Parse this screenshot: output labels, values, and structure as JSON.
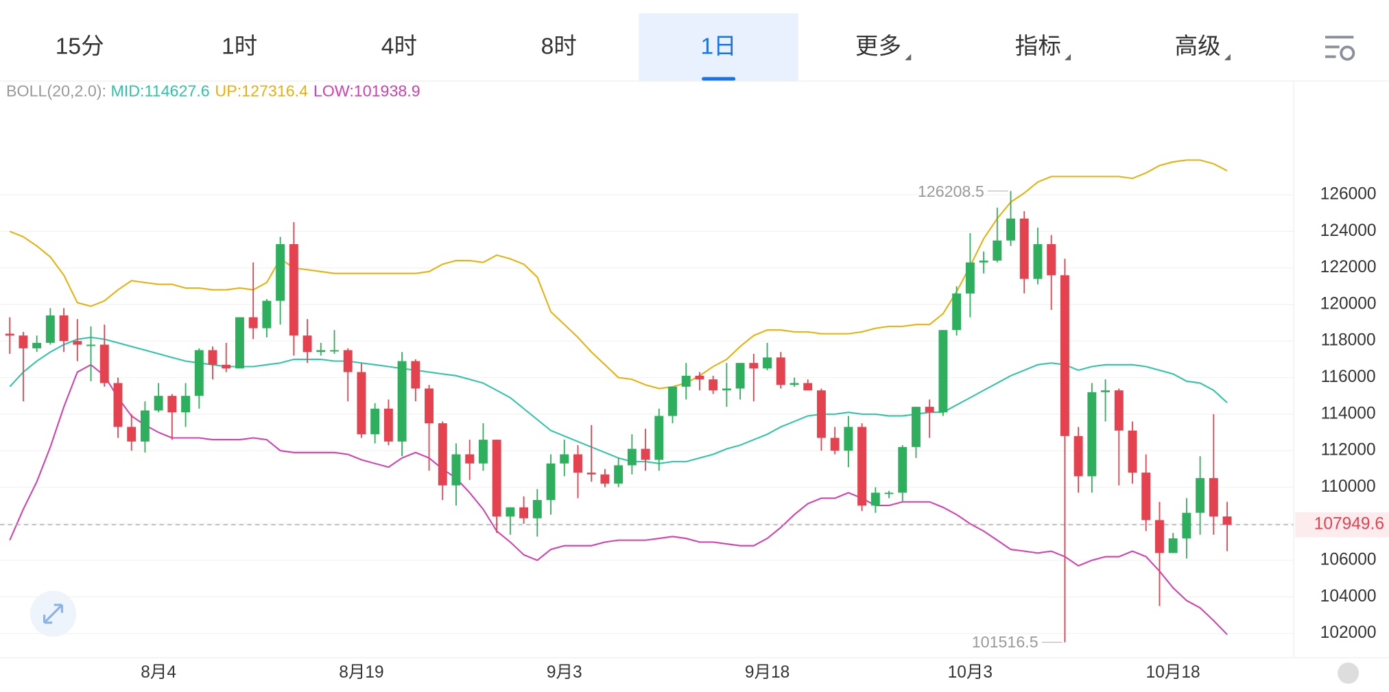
{
  "tabs": [
    {
      "label": "15分"
    },
    {
      "label": "1时"
    },
    {
      "label": "4时"
    },
    {
      "label": "8时"
    },
    {
      "label": "1日"
    },
    {
      "label": "更多",
      "menu": true
    },
    {
      "label": "指标",
      "menu": true
    },
    {
      "label": "高级",
      "menu": true
    }
  ],
  "selected_tab": 4,
  "chart_data": {
    "type": "candlestick",
    "indicator_label": "BOLL(20,2.0):",
    "up_color": "#2eaf5d",
    "down_color": "#e5424f",
    "categories": [
      null,
      null,
      null,
      null,
      null,
      null,
      null,
      null,
      null,
      null,
      null,
      "8月4",
      null,
      null,
      null,
      null,
      null,
      null,
      null,
      null,
      null,
      null,
      null,
      null,
      null,
      null,
      "8月19",
      null,
      null,
      null,
      null,
      null,
      null,
      null,
      null,
      null,
      null,
      null,
      null,
      null,
      null,
      "9月3",
      null,
      null,
      null,
      null,
      null,
      null,
      null,
      null,
      null,
      null,
      null,
      null,
      null,
      null,
      "9月18",
      null,
      null,
      null,
      null,
      null,
      null,
      null,
      null,
      null,
      null,
      null,
      null,
      null,
      null,
      "10月3",
      null,
      null,
      null,
      null,
      null,
      null,
      null,
      null,
      null,
      null,
      null,
      null,
      null,
      null,
      "10月18",
      null,
      null,
      null,
      null
    ],
    "open": [
      118400,
      118300,
      117600,
      117900,
      119400,
      118000,
      117800,
      117800,
      115700,
      113300,
      112500,
      114200,
      115000,
      114100,
      115000,
      117500,
      116700,
      116500,
      119300,
      118700,
      120200,
      123300,
      118300,
      117400,
      117500,
      117500,
      116300,
      112900,
      114300,
      112500,
      116900,
      115400,
      113500,
      110100,
      111800,
      111300,
      112600,
      108400,
      108900,
      108300,
      109300,
      111300,
      111800,
      110800,
      110700,
      110200,
      111200,
      112100,
      111500,
      113900,
      115500,
      116100,
      115900,
      115300,
      115400,
      116800,
      116500,
      117100,
      115600,
      115700,
      115300,
      112700,
      112000,
      113300,
      109000,
      109700,
      109700,
      112200,
      114400,
      114100,
      118600,
      120600,
      122300,
      122400,
      123500,
      124700,
      121400,
      123300,
      121600,
      112800,
      110600,
      115200,
      115300,
      113100,
      110800,
      108200,
      106400,
      107200,
      108600,
      110500,
      108400
    ],
    "high": [
      119300,
      118500,
      118300,
      119800,
      119800,
      119200,
      118800,
      118900,
      116000,
      114000,
      114700,
      115700,
      115100,
      115700,
      117600,
      117700,
      117900,
      119300,
      122300,
      120300,
      123700,
      124500,
      119200,
      117900,
      118600,
      117600,
      116800,
      114600,
      114800,
      117400,
      117000,
      115600,
      113600,
      112400,
      112600,
      113500,
      112600,
      108900,
      109500,
      109900,
      111800,
      112600,
      112300,
      113400,
      111000,
      111600,
      112900,
      113200,
      114300,
      115500,
      116800,
      116300,
      116100,
      116800,
      116800,
      117300,
      117900,
      117400,
      116000,
      115900,
      115400,
      113300,
      113900,
      113500,
      110000,
      109800,
      112300,
      114400,
      114800,
      118600,
      121000,
      123900,
      122900,
      125300,
      126208.5,
      125100,
      124200,
      123800,
      122500,
      113300,
      115700,
      115900,
      115400,
      113600,
      111800,
      109200,
      107500,
      109400,
      111700,
      114000,
      109200
    ],
    "low": [
      117300,
      114700,
      117400,
      117800,
      117400,
      116900,
      115800,
      115500,
      112700,
      112000,
      111900,
      114100,
      112600,
      113300,
      114300,
      115900,
      116300,
      116500,
      118100,
      118200,
      118900,
      117200,
      116800,
      117200,
      117300,
      114700,
      112700,
      112400,
      112300,
      111700,
      114700,
      110900,
      109300,
      109000,
      110400,
      110900,
      107500,
      107400,
      108000,
      107300,
      108500,
      110600,
      109400,
      110300,
      110000,
      110000,
      110700,
      110900,
      110900,
      113500,
      114800,
      115300,
      115100,
      114400,
      114800,
      114700,
      116400,
      115400,
      115500,
      115300,
      112000,
      111800,
      111100,
      108700,
      108600,
      109400,
      109200,
      111600,
      112700,
      113900,
      118300,
      119300,
      121700,
      122300,
      123200,
      120600,
      121100,
      119700,
      101516.5,
      109700,
      109700,
      113600,
      110100,
      110200,
      107600,
      103500,
      106400,
      106100,
      107400,
      107400,
      106500
    ],
    "close": [
      118300,
      117600,
      117900,
      119400,
      118000,
      117800,
      117800,
      115700,
      113300,
      112500,
      114200,
      115000,
      114100,
      115000,
      117500,
      116700,
      116500,
      119300,
      118700,
      120200,
      123300,
      118300,
      117400,
      117500,
      117500,
      116300,
      112900,
      114300,
      112500,
      116900,
      115400,
      113500,
      110100,
      111800,
      111300,
      112600,
      108400,
      108900,
      108300,
      109300,
      111300,
      111800,
      110800,
      110700,
      110200,
      111200,
      112100,
      111500,
      113900,
      115500,
      116100,
      115900,
      115300,
      115400,
      116800,
      116500,
      117100,
      115600,
      115700,
      115300,
      112700,
      112000,
      113300,
      109000,
      109700,
      109700,
      112200,
      114400,
      114100,
      118600,
      120600,
      122300,
      122400,
      123500,
      124700,
      121400,
      123300,
      121600,
      112800,
      110600,
      115200,
      115300,
      113100,
      110800,
      108200,
      106400,
      107200,
      108600,
      110500,
      108400,
      107949.6
    ],
    "series": [
      {
        "label": "MID:114627.6",
        "color": "#2ec4a6",
        "values": [
          115500,
          116300,
          116900,
          117400,
          117800,
          118100,
          118200,
          118100,
          117900,
          117700,
          117500,
          117300,
          117100,
          116900,
          116800,
          116700,
          116600,
          116600,
          116600,
          116700,
          116800,
          117000,
          117000,
          117000,
          116900,
          116900,
          116800,
          116700,
          116600,
          116500,
          116400,
          116300,
          116200,
          116100,
          115900,
          115700,
          115300,
          114900,
          114300,
          113700,
          113100,
          112800,
          112500,
          112200,
          111900,
          111600,
          111400,
          111400,
          111300,
          111400,
          111400,
          111600,
          111800,
          112100,
          112300,
          112600,
          112900,
          113300,
          113600,
          113900,
          114000,
          114000,
          114100,
          114000,
          114000,
          113900,
          113900,
          114000,
          114100,
          114100,
          114500,
          114900,
          115300,
          115700,
          116100,
          116400,
          116700,
          116800,
          116700,
          116400,
          116600,
          116700,
          116700,
          116700,
          116600,
          116400,
          116200,
          115800,
          115700,
          115300,
          114627.6
        ]
      },
      {
        "label": "UP:127316.4",
        "color": "#e9b00c",
        "values": [
          124000,
          123700,
          123200,
          122600,
          121600,
          120100,
          119900,
          120200,
          120800,
          121300,
          121200,
          121100,
          121100,
          120900,
          120900,
          120800,
          120800,
          120900,
          120800,
          121200,
          122500,
          122000,
          121900,
          121800,
          121700,
          121700,
          121700,
          121700,
          121700,
          121700,
          121700,
          121800,
          122200,
          122400,
          122400,
          122300,
          122700,
          122500,
          122200,
          121500,
          119600,
          118900,
          118200,
          117400,
          116700,
          116000,
          115900,
          115600,
          115400,
          115500,
          115700,
          116100,
          116600,
          117000,
          117700,
          118300,
          118600,
          118600,
          118500,
          118500,
          118400,
          118400,
          118400,
          118500,
          118700,
          118800,
          118800,
          118900,
          118900,
          119500,
          120700,
          122100,
          123600,
          124700,
          125600,
          126100,
          126700,
          127000,
          127000,
          127000,
          127000,
          127000,
          127000,
          126900,
          127200,
          127600,
          127800,
          127900,
          127900,
          127700,
          127316.4
        ]
      },
      {
        "label": "LOW:101938.9",
        "color": "#d43fb0",
        "values": [
          107100,
          108800,
          110300,
          112200,
          114400,
          116300,
          116700,
          116100,
          114900,
          113900,
          113400,
          113000,
          112700,
          112700,
          112700,
          112600,
          112600,
          112600,
          112700,
          112600,
          112000,
          111900,
          111900,
          111900,
          111900,
          111800,
          111500,
          111300,
          111100,
          111600,
          111900,
          111600,
          111000,
          110500,
          109700,
          108800,
          107600,
          107000,
          106300,
          106000,
          106600,
          106800,
          106800,
          106800,
          107000,
          107100,
          107100,
          107100,
          107200,
          107300,
          107200,
          107000,
          107000,
          106900,
          106800,
          106800,
          107200,
          107800,
          108500,
          109100,
          109400,
          109400,
          109700,
          109400,
          109000,
          109000,
          109200,
          109200,
          109200,
          108900,
          108500,
          108000,
          107600,
          107100,
          106600,
          106500,
          106400,
          106500,
          106200,
          105700,
          106000,
          106200,
          106200,
          106500,
          106200,
          105400,
          104500,
          103800,
          103400,
          102700,
          101938.9
        ]
      }
    ],
    "ylim": [
      100700,
      132200
    ],
    "yticks": [
      102000,
      104000,
      106000,
      108000,
      110000,
      112000,
      114000,
      116000,
      118000,
      120000,
      122000,
      124000,
      126000
    ],
    "grid": true,
    "high_annotation": 126208.5,
    "low_annotation": 101516.5,
    "last_price": 107949.6
  }
}
